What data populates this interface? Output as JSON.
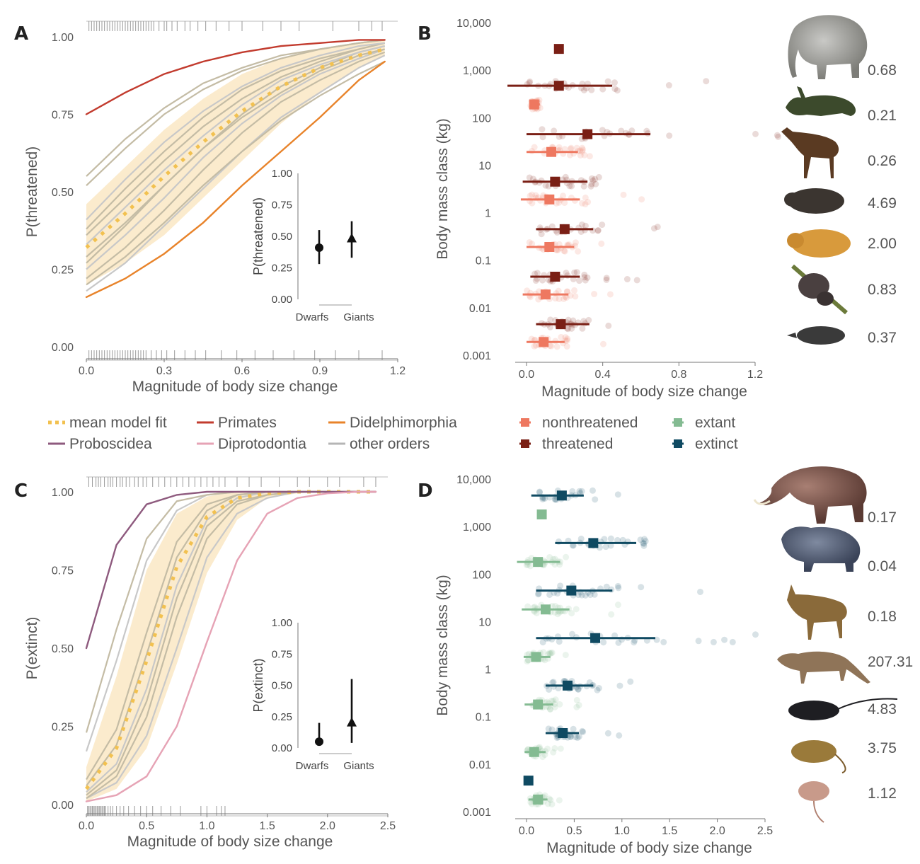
{
  "legend_left": {
    "items": [
      {
        "label": "mean model fit",
        "color": "#f2c150",
        "style": "dotted"
      },
      {
        "label": "Primates",
        "color": "#c23b2e",
        "style": "solid"
      },
      {
        "label": "Didelphimorphia",
        "color": "#e8832a",
        "style": "solid"
      },
      {
        "label": "Proboscidea",
        "color": "#8e5a7e",
        "style": "solid"
      },
      {
        "label": "Diprotodontia",
        "color": "#e6a3b5",
        "style": "solid"
      },
      {
        "label": "other orders",
        "color": "#b5b5b5",
        "style": "solid"
      }
    ]
  },
  "legend_right": {
    "items": [
      {
        "label": "nonthreatened",
        "color": "#ee7860"
      },
      {
        "label": "threatened",
        "color": "#7a1f15"
      },
      {
        "label": "extant",
        "color": "#84bb92"
      },
      {
        "label": "extinct",
        "color": "#0f4a62"
      }
    ]
  },
  "species_icons": [
    "elephant-icon",
    "antelope-icon",
    "deer-icon",
    "rodent-icon",
    "guinea-pig-icon",
    "sloth-icon",
    "shrew-icon",
    "mammoth-icon",
    "hippo-icon",
    "goat-icon",
    "thylacine-icon",
    "rat-icon",
    "mouse-icon",
    "dwarf-rodent-icon"
  ],
  "chart_data": [
    {
      "panel": "A",
      "type": "line",
      "xlabel": "Magnitude of body size change",
      "ylabel": "P(threatened)",
      "xlim": [
        0,
        1.2
      ],
      "ylim": [
        0,
        1
      ],
      "xticks": [
        "0.0",
        "0.3",
        "0.6",
        "0.9",
        "1.2"
      ],
      "yticks": [
        "0.00",
        "0.25",
        "0.50",
        "0.75",
        "1.00"
      ],
      "x": [
        0,
        0.15,
        0.3,
        0.45,
        0.6,
        0.75,
        0.9,
        1.05,
        1.15
      ],
      "series": [
        {
          "name": "mean model fit",
          "values": [
            0.32,
            0.43,
            0.55,
            0.66,
            0.76,
            0.84,
            0.9,
            0.94,
            0.96
          ]
        },
        {
          "name": "Primates",
          "values": [
            0.75,
            0.82,
            0.88,
            0.92,
            0.95,
            0.97,
            0.98,
            0.99,
            0.99
          ]
        },
        {
          "name": "Didelphimorphia",
          "values": [
            0.16,
            0.22,
            0.3,
            0.4,
            0.52,
            0.63,
            0.74,
            0.86,
            0.92
          ]
        }
      ],
      "other_orders": [
        [
          0.18,
          0.27,
          0.39,
          0.51,
          0.63,
          0.74,
          0.82,
          0.9,
          0.94
        ],
        [
          0.2,
          0.29,
          0.4,
          0.52,
          0.63,
          0.73,
          0.81,
          0.88,
          0.92
        ],
        [
          0.22,
          0.32,
          0.44,
          0.57,
          0.69,
          0.79,
          0.86,
          0.92,
          0.95
        ],
        [
          0.25,
          0.36,
          0.48,
          0.61,
          0.72,
          0.81,
          0.88,
          0.93,
          0.96
        ],
        [
          0.27,
          0.39,
          0.52,
          0.64,
          0.75,
          0.84,
          0.9,
          0.95,
          0.97
        ],
        [
          0.29,
          0.4,
          0.52,
          0.64,
          0.74,
          0.82,
          0.89,
          0.94,
          0.96
        ],
        [
          0.33,
          0.45,
          0.57,
          0.68,
          0.78,
          0.86,
          0.91,
          0.95,
          0.97
        ],
        [
          0.36,
          0.48,
          0.6,
          0.71,
          0.8,
          0.87,
          0.92,
          0.96,
          0.98
        ],
        [
          0.38,
          0.51,
          0.63,
          0.74,
          0.83,
          0.89,
          0.93,
          0.96,
          0.98
        ],
        [
          0.41,
          0.54,
          0.66,
          0.76,
          0.84,
          0.9,
          0.94,
          0.97,
          0.98
        ],
        [
          0.52,
          0.64,
          0.75,
          0.83,
          0.89,
          0.93,
          0.96,
          0.98,
          0.99
        ],
        [
          0.55,
          0.67,
          0.77,
          0.85,
          0.9,
          0.94,
          0.96,
          0.98,
          0.99
        ]
      ],
      "ci_lower": [
        0.2,
        0.27,
        0.36,
        0.48,
        0.6,
        0.72,
        0.82,
        0.9,
        0.94
      ],
      "ci_upper": [
        0.46,
        0.58,
        0.7,
        0.8,
        0.88,
        0.93,
        0.96,
        0.98,
        0.99
      ],
      "rug_top": [
        0.01,
        0.02,
        0.03,
        0.04,
        0.05,
        0.06,
        0.07,
        0.08,
        0.09,
        0.1,
        0.11,
        0.12,
        0.13,
        0.14,
        0.15,
        0.16,
        0.17,
        0.18,
        0.19,
        0.2,
        0.21,
        0.22,
        0.23,
        0.24,
        0.25,
        0.26,
        0.28,
        0.3,
        0.31,
        0.33,
        0.35,
        0.38,
        0.4,
        0.43,
        0.46,
        0.5,
        0.55,
        0.6,
        0.68,
        0.75,
        0.82,
        0.95,
        1.05,
        1.1,
        1.14
      ],
      "rug_bottom": [
        0.01,
        0.02,
        0.03,
        0.04,
        0.05,
        0.06,
        0.07,
        0.08,
        0.09,
        0.1,
        0.11,
        0.12,
        0.13,
        0.14,
        0.15,
        0.16,
        0.17,
        0.18,
        0.19,
        0.2,
        0.21,
        0.22,
        0.23,
        0.25,
        0.27,
        0.29,
        0.31,
        0.34,
        0.38,
        0.42,
        0.46,
        0.52,
        0.58,
        0.65,
        0.72,
        0.8,
        0.88,
        0.96,
        1.05,
        1.14
      ],
      "inset": {
        "ylabel": "P(threatened)",
        "yticks": [
          "0.00",
          "0.25",
          "0.50",
          "0.75",
          "1.00"
        ],
        "categories": [
          "Dwarfs",
          "Giants"
        ],
        "estimate": [
          0.41,
          0.48
        ],
        "lower": [
          0.28,
          0.33
        ],
        "upper": [
          0.55,
          0.62
        ]
      }
    },
    {
      "panel": "B",
      "type": "scatter",
      "xlabel": "Magnitude of body size change",
      "ylabel": "Body mass class (kg)",
      "xlim": [
        0,
        1.2
      ],
      "xticks": [
        "0.0",
        "0.4",
        "0.8",
        "1.2"
      ],
      "yticks": [
        "0.001",
        "0.01",
        "0.1",
        "1",
        "10",
        "100",
        "1,000",
        "10,000"
      ],
      "series": [
        {
          "name": "threatened",
          "points": [
            {
              "y": 2800,
              "x": 0.17
            },
            {
              "y": 470,
              "x": 0.17,
              "lo": -0.1,
              "hi": 0.45
            },
            {
              "y": 45,
              "x": 0.32,
              "lo": 0.0,
              "hi": 0.65
            },
            {
              "y": 4.5,
              "x": 0.15,
              "lo": -0.02,
              "hi": 0.32
            },
            {
              "y": 0.45,
              "x": 0.2,
              "lo": 0.05,
              "hi": 0.35
            },
            {
              "y": 0.045,
              "x": 0.15,
              "lo": 0.02,
              "hi": 0.28
            },
            {
              "y": 0.0045,
              "x": 0.18,
              "lo": 0.05,
              "hi": 0.33
            }
          ]
        },
        {
          "name": "nonthreatened",
          "points": [
            {
              "y": 190,
              "x": 0.04,
              "lo": 0.02,
              "hi": 0.07
            },
            {
              "y": 19,
              "x": 0.13,
              "lo": 0.0,
              "hi": 0.27
            },
            {
              "y": 1.9,
              "x": 0.12,
              "lo": -0.03,
              "hi": 0.28
            },
            {
              "y": 0.19,
              "x": 0.12,
              "lo": 0.0,
              "hi": 0.25
            },
            {
              "y": 0.019,
              "x": 0.1,
              "lo": -0.02,
              "hi": 0.22
            },
            {
              "y": 0.0019,
              "x": 0.09,
              "lo": 0.0,
              "hi": 0.2
            }
          ]
        }
      ],
      "species_values": [
        "0.68",
        "0.21",
        "0.26",
        "4.69",
        "2.00",
        "0.83",
        "0.37"
      ]
    },
    {
      "panel": "C",
      "type": "line",
      "xlabel": "Magnitude of body size change",
      "ylabel": "P(extinct)",
      "xlim": [
        0,
        2.5
      ],
      "ylim": [
        0,
        1
      ],
      "xticks": [
        "0.0",
        "0.5",
        "1.0",
        "1.5",
        "2.0",
        "2.5"
      ],
      "yticks": [
        "0.00",
        "0.25",
        "0.50",
        "0.75",
        "1.00"
      ],
      "x": [
        0,
        0.25,
        0.5,
        0.75,
        1.0,
        1.25,
        1.5,
        1.75,
        2.0,
        2.25,
        2.4
      ],
      "series": [
        {
          "name": "mean model fit",
          "values": [
            0.05,
            0.18,
            0.46,
            0.76,
            0.92,
            0.98,
            0.995,
            1.0,
            1.0,
            1.0,
            1.0
          ]
        },
        {
          "name": "Proboscidea",
          "values": [
            0.5,
            0.83,
            0.96,
            0.99,
            1.0,
            1.0,
            1.0,
            1.0,
            1.0,
            1.0,
            1.0
          ]
        },
        {
          "name": "Diprotodontia",
          "values": [
            0.01,
            0.03,
            0.09,
            0.25,
            0.52,
            0.78,
            0.93,
            0.98,
            0.995,
            1.0,
            1.0
          ]
        }
      ],
      "other_orders": [
        [
          0.02,
          0.07,
          0.22,
          0.5,
          0.79,
          0.93,
          0.98,
          1.0,
          1.0,
          1.0,
          1.0
        ],
        [
          0.02,
          0.09,
          0.28,
          0.6,
          0.85,
          0.96,
          0.99,
          1.0,
          1.0,
          1.0,
          1.0
        ],
        [
          0.03,
          0.11,
          0.33,
          0.66,
          0.89,
          0.97,
          0.99,
          1.0,
          1.0,
          1.0,
          1.0
        ],
        [
          0.04,
          0.13,
          0.37,
          0.7,
          0.91,
          0.98,
          1.0,
          1.0,
          1.0,
          1.0,
          1.0
        ],
        [
          0.06,
          0.19,
          0.48,
          0.79,
          0.94,
          0.99,
          1.0,
          1.0,
          1.0,
          1.0,
          1.0
        ],
        [
          0.08,
          0.24,
          0.55,
          0.84,
          0.96,
          0.99,
          1.0,
          1.0,
          1.0,
          1.0,
          1.0
        ],
        [
          0.17,
          0.46,
          0.78,
          0.94,
          0.99,
          1.0,
          1.0,
          1.0,
          1.0,
          1.0,
          1.0
        ],
        [
          0.23,
          0.56,
          0.85,
          0.97,
          0.99,
          1.0,
          1.0,
          1.0,
          1.0,
          1.0,
          1.0
        ]
      ],
      "ci_lower": [
        0.01,
        0.05,
        0.18,
        0.45,
        0.74,
        0.91,
        0.98,
        0.995,
        1.0,
        1.0,
        1.0
      ],
      "ci_upper": [
        0.12,
        0.41,
        0.75,
        0.93,
        0.985,
        1.0,
        1.0,
        1.0,
        1.0,
        1.0,
        1.0
      ],
      "rug_top": [
        0.02,
        0.05,
        0.08,
        0.1,
        0.12,
        0.15,
        0.18,
        0.2,
        0.22,
        0.25,
        0.28,
        0.3,
        0.33,
        0.36,
        0.4,
        0.43,
        0.47,
        0.5,
        0.55,
        0.6,
        0.65,
        0.7,
        0.75,
        0.8,
        0.85,
        0.9,
        0.95,
        1.0,
        1.05,
        1.1,
        1.15,
        1.25,
        1.35,
        1.45,
        1.6,
        1.75,
        1.85,
        2.0,
        2.1,
        2.3,
        2.4
      ],
      "rug_bottom": [
        0.01,
        0.02,
        0.03,
        0.04,
        0.05,
        0.06,
        0.07,
        0.08,
        0.09,
        0.1,
        0.11,
        0.12,
        0.13,
        0.14,
        0.15,
        0.16,
        0.18,
        0.2,
        0.22,
        0.25,
        0.28,
        0.31,
        0.35,
        0.4,
        0.45,
        0.5,
        0.55,
        0.62,
        0.7,
        0.78,
        0.95,
        1.0,
        1.08,
        1.12,
        1.15
      ],
      "inset": {
        "ylabel": "P(extinct)",
        "yticks": [
          "0.00",
          "0.25",
          "0.50",
          "0.75",
          "1.00"
        ],
        "categories": [
          "Dwarfs",
          "Giants"
        ],
        "estimate": [
          0.05,
          0.2
        ],
        "lower": [
          0.02,
          0.04
        ],
        "upper": [
          0.2,
          0.55
        ]
      }
    },
    {
      "panel": "D",
      "type": "scatter",
      "xlabel": "Magnitude of body size change",
      "ylabel": "Body mass class (kg)",
      "xlim": [
        0,
        2.5
      ],
      "xticks": [
        "0.0",
        "0.5",
        "1.0",
        "1.5",
        "2.0",
        "2.5"
      ],
      "yticks": [
        "0.001",
        "0.01",
        "0.1",
        "1",
        "10",
        "100",
        "1,000",
        "10,000"
      ],
      "series": [
        {
          "name": "extinct",
          "points": [
            {
              "y": 4500,
              "x": 0.37,
              "lo": 0.05,
              "hi": 0.6
            },
            {
              "y": 450,
              "x": 0.7,
              "lo": 0.3,
              "hi": 1.15
            },
            {
              "y": 45,
              "x": 0.47,
              "lo": 0.1,
              "hi": 0.9
            },
            {
              "y": 4.5,
              "x": 0.72,
              "lo": 0.1,
              "hi": 1.35
            },
            {
              "y": 0.45,
              "x": 0.43,
              "lo": 0.2,
              "hi": 0.7
            },
            {
              "y": 0.045,
              "x": 0.38,
              "lo": 0.2,
              "hi": 0.55
            },
            {
              "y": 0.0045,
              "x": 0.02
            }
          ]
        },
        {
          "name": "extant",
          "points": [
            {
              "y": 1800,
              "x": 0.16
            },
            {
              "y": 180,
              "x": 0.12,
              "lo": -0.1,
              "hi": 0.35
            },
            {
              "y": 18,
              "x": 0.2,
              "lo": -0.05,
              "hi": 0.45
            },
            {
              "y": 1.8,
              "x": 0.1,
              "lo": -0.03,
              "hi": 0.25
            },
            {
              "y": 0.18,
              "x": 0.12,
              "lo": -0.02,
              "hi": 0.28
            },
            {
              "y": 0.018,
              "x": 0.08,
              "lo": -0.02,
              "hi": 0.2
            },
            {
              "y": 0.0018,
              "x": 0.12,
              "lo": 0.02,
              "hi": 0.22
            }
          ]
        }
      ],
      "species_values": [
        "0.17",
        "0.04",
        "0.18",
        "207.31",
        "4.83",
        "3.75",
        "1.12"
      ]
    }
  ]
}
